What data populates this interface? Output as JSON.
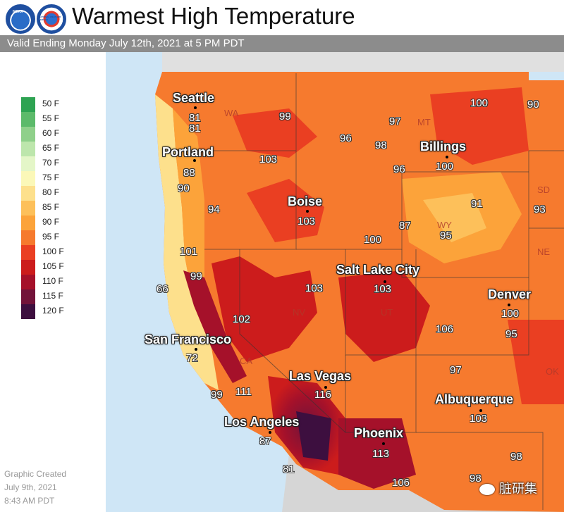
{
  "header": {
    "title": "Warmest High Temperature",
    "subtitle": "Valid Ending Monday July 12th, 2021 at 5 PM PDT",
    "logos": [
      {
        "name": "noaa-logo",
        "text": "NOAA"
      },
      {
        "name": "nws-logo",
        "text": "NATIONAL WEATHER SERVICE"
      }
    ]
  },
  "legend": {
    "items": [
      {
        "label": "50 F",
        "color": "#2ea352"
      },
      {
        "label": "55 F",
        "color": "#5cba6a"
      },
      {
        "label": "60 F",
        "color": "#8fd08a"
      },
      {
        "label": "65 F",
        "color": "#bde6ac"
      },
      {
        "label": "70 F",
        "color": "#e4f6c8"
      },
      {
        "label": "75 F",
        "color": "#fbf8b8"
      },
      {
        "label": "80 F",
        "color": "#fde08c"
      },
      {
        "label": "85 F",
        "color": "#fdc05a"
      },
      {
        "label": "90 F",
        "color": "#fca33a"
      },
      {
        "label": "95 F",
        "color": "#f67a2e"
      },
      {
        "label": "100 F",
        "color": "#ea3f22"
      },
      {
        "label": "105 F",
        "color": "#cc1c1c"
      },
      {
        "label": "110 F",
        "color": "#a5112a"
      },
      {
        "label": "115 F",
        "color": "#72133a"
      },
      {
        "label": "120 F",
        "color": "#3d0f3f"
      }
    ]
  },
  "cities": [
    {
      "name": "Seattle"
    },
    {
      "name": "Portland"
    },
    {
      "name": "Boise"
    },
    {
      "name": "Billings"
    },
    {
      "name": "Salt Lake City"
    },
    {
      "name": "Denver"
    },
    {
      "name": "San Francisco"
    },
    {
      "name": "Las Vegas"
    },
    {
      "name": "Albuquerque"
    },
    {
      "name": "Los Angeles"
    },
    {
      "name": "Phoenix"
    }
  ],
  "values": [
    "81",
    "81",
    "99",
    "100",
    "90",
    "97",
    "96",
    "98",
    "103",
    "96",
    "100",
    "88",
    "90",
    "94",
    "103",
    "91",
    "93",
    "87",
    "95",
    "100",
    "101",
    "99",
    "66",
    "103",
    "103",
    "102",
    "106",
    "100",
    "95",
    "72",
    "97",
    "116",
    "99",
    "111",
    "103",
    "113",
    "87",
    "98",
    "81",
    "106",
    "98"
  ],
  "states": [
    "WA",
    "MT",
    "WY",
    "SD",
    "NE",
    "NV",
    "UT",
    "CA",
    "OK"
  ],
  "footer": {
    "line1": "Graphic Created",
    "line2": "July 9th, 2021",
    "line3": "8:43 AM PDT"
  },
  "watermark": "脏研集"
}
